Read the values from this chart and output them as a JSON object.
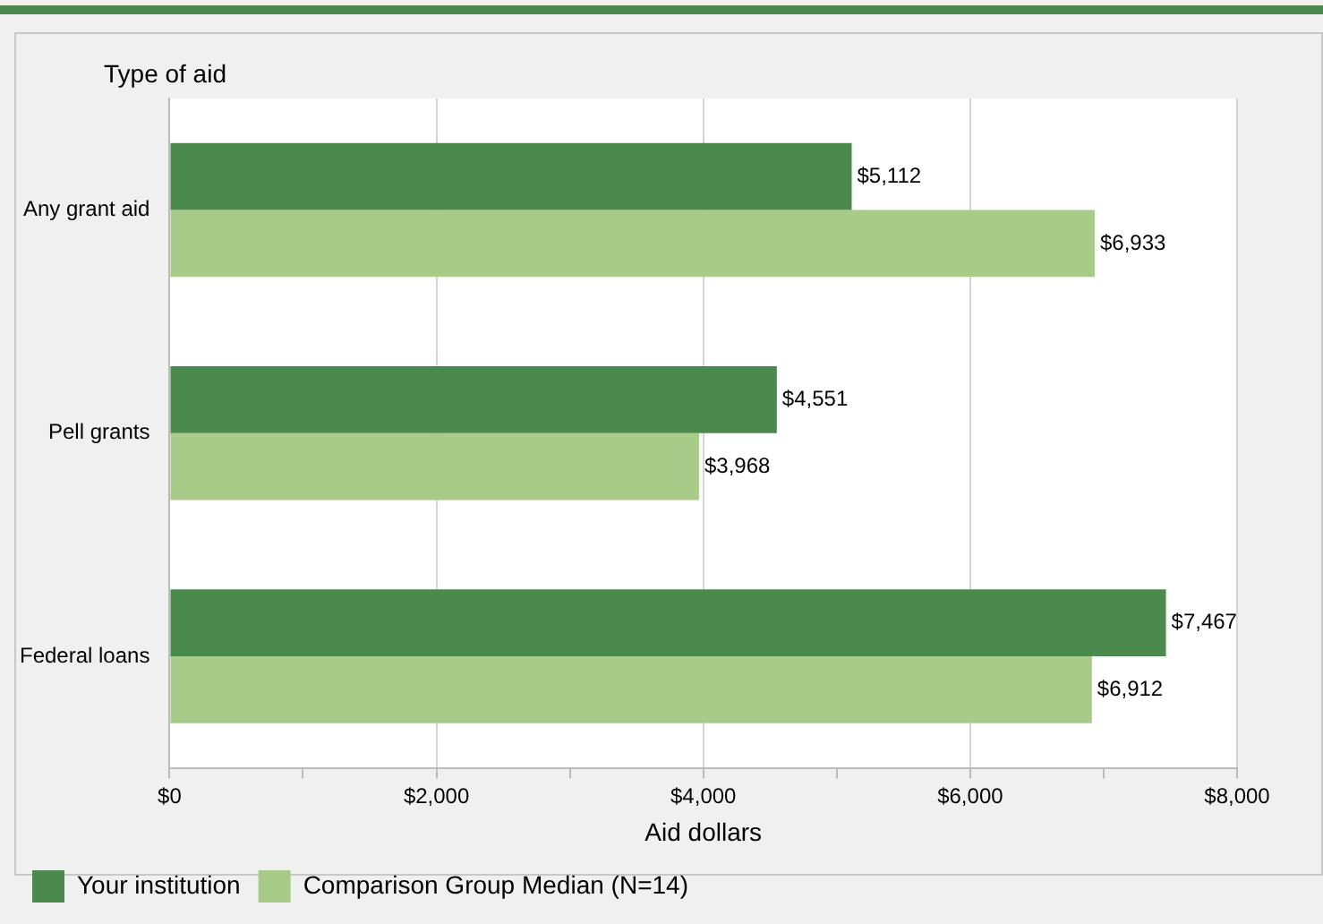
{
  "chart_data": {
    "type": "bar",
    "orientation": "horizontal",
    "ylabel": "Type of aid",
    "xlabel": "Aid dollars",
    "categories": [
      "Any grant aid",
      "Pell grants",
      "Federal loans"
    ],
    "series": [
      {
        "name": "Your institution",
        "color": "#4b8a4c",
        "values": [
          5112,
          4551,
          7467
        ],
        "value_labels": [
          "$5,112",
          "$4,551",
          "$7,467"
        ]
      },
      {
        "name": "Comparison Group Median (N=14)",
        "color": "#a9cb8a",
        "values": [
          6933,
          3968,
          6912
        ],
        "value_labels": [
          "$6,933",
          "$3,968",
          "$6,912"
        ]
      }
    ],
    "xlim": [
      0,
      8000
    ],
    "xticks": [
      {
        "value": 0,
        "label": "$0"
      },
      {
        "value": 1000,
        "label": null
      },
      {
        "value": 2000,
        "label": "$2,000"
      },
      {
        "value": 3000,
        "label": null
      },
      {
        "value": 4000,
        "label": "$4,000"
      },
      {
        "value": 5000,
        "label": null
      },
      {
        "value": 6000,
        "label": "$6,000"
      },
      {
        "value": 7000,
        "label": null
      },
      {
        "value": 8000,
        "label": "$8,000"
      }
    ],
    "grid": "x",
    "legend": "bottom"
  }
}
